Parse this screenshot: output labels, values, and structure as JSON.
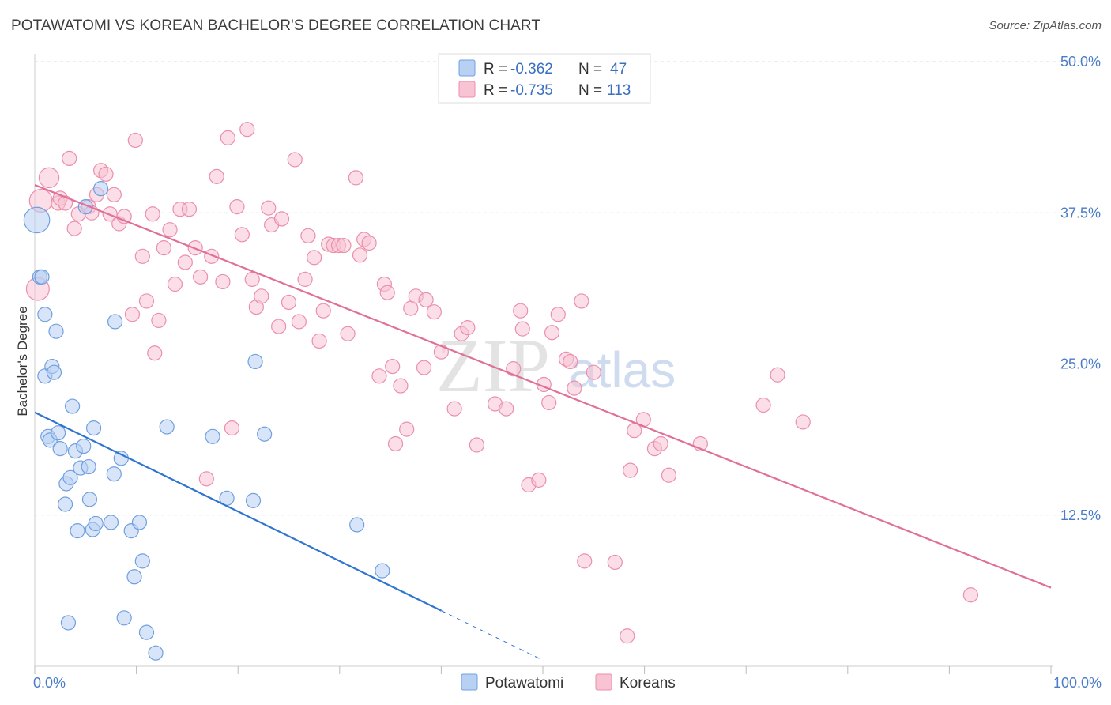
{
  "title": "POTAWATOMI VS KOREAN BACHELOR'S DEGREE CORRELATION CHART",
  "source": "Source: ZipAtlas.com",
  "watermark": {
    "zip": "ZIP",
    "atlas": "atlas"
  },
  "colors": {
    "blue_fill": "#b8d0f2",
    "blue_stroke": "#6f9fe0",
    "blue_line": "#2f74d0",
    "pink_fill": "#f8c3d3",
    "pink_stroke": "#eb8fac",
    "pink_line": "#e0709a",
    "tick": "#4a7cc7",
    "grid": "#dddddd"
  },
  "legend": {
    "rows": [
      {
        "r_label": "R =",
        "r_value": "-0.362",
        "n_label": "N =",
        "n_value": "47"
      },
      {
        "r_label": "R =",
        "r_value": "-0.735",
        "n_label": "N =",
        "n_value": "113"
      }
    ]
  },
  "chart_data": {
    "type": "scatter",
    "title": "POTAWATOMI VS KOREAN BACHELOR'S DEGREE CORRELATION CHART",
    "xlabel": "",
    "ylabel": "Bachelor's Degree",
    "xlim": [
      0,
      100
    ],
    "ylim": [
      0,
      50
    ],
    "x_tick_labels": [
      "0.0%",
      "100.0%"
    ],
    "y_ticks": [
      12.5,
      25.0,
      37.5,
      50.0
    ],
    "y_tick_labels": [
      "12.5%",
      "25.0%",
      "37.5%",
      "50.0%"
    ],
    "legend_position": "top-center",
    "series": [
      {
        "name": "Potawatomi",
        "r": -0.362,
        "n": 47,
        "trend": {
          "x0": 0,
          "y0": 21.0,
          "x1": 40,
          "y1": 4.6,
          "dash_to_x": 50,
          "dash_to_y": 0.5
        },
        "points": [
          [
            0.2,
            36.9,
            1.8
          ],
          [
            0.5,
            32.2,
            1
          ],
          [
            0.7,
            32.2,
            1
          ],
          [
            1.0,
            29.1,
            1
          ],
          [
            1.0,
            24.0,
            1
          ],
          [
            1.3,
            19.0,
            1
          ],
          [
            1.5,
            18.7,
            1
          ],
          [
            1.7,
            24.8,
            1
          ],
          [
            1.9,
            24.3,
            1
          ],
          [
            2.1,
            27.7,
            1
          ],
          [
            2.3,
            19.3,
            1
          ],
          [
            2.5,
            18.0,
            1
          ],
          [
            3.0,
            13.4,
            1
          ],
          [
            3.1,
            15.1,
            1
          ],
          [
            3.3,
            3.6,
            1
          ],
          [
            3.5,
            15.6,
            1
          ],
          [
            3.7,
            21.5,
            1
          ],
          [
            4.0,
            17.8,
            1
          ],
          [
            4.2,
            11.2,
            1
          ],
          [
            4.5,
            16.4,
            1
          ],
          [
            4.8,
            18.2,
            1
          ],
          [
            5.0,
            38.0,
            1
          ],
          [
            5.3,
            16.5,
            1
          ],
          [
            5.4,
            13.8,
            1
          ],
          [
            5.7,
            11.3,
            1
          ],
          [
            5.8,
            19.7,
            1
          ],
          [
            6.0,
            11.8,
            1
          ],
          [
            6.5,
            39.5,
            1
          ],
          [
            7.5,
            11.9,
            1
          ],
          [
            7.8,
            15.9,
            1
          ],
          [
            7.9,
            28.5,
            1
          ],
          [
            8.5,
            17.2,
            1
          ],
          [
            8.8,
            4.0,
            1
          ],
          [
            9.5,
            11.2,
            1
          ],
          [
            9.8,
            7.4,
            1
          ],
          [
            10.3,
            11.9,
            1
          ],
          [
            10.6,
            8.7,
            1
          ],
          [
            11.0,
            2.8,
            1
          ],
          [
            11.9,
            1.1,
            1
          ],
          [
            13.0,
            19.8,
            1
          ],
          [
            17.5,
            19.0,
            1
          ],
          [
            18.9,
            13.9,
            1
          ],
          [
            21.5,
            13.7,
            1
          ],
          [
            21.7,
            25.2,
            1
          ],
          [
            22.6,
            19.2,
            1
          ],
          [
            31.7,
            11.7,
            1
          ],
          [
            34.2,
            7.9,
            1
          ]
        ]
      },
      {
        "name": "Koreans",
        "r": -0.735,
        "n": 113,
        "trend": {
          "x0": 0,
          "y0": 39.8,
          "x1": 100,
          "y1": 6.5
        },
        "points": [
          [
            0.6,
            38.5,
            1.6
          ],
          [
            0.3,
            31.2,
            1.6
          ],
          [
            1.4,
            40.4,
            1.4
          ],
          [
            2.3,
            38.3,
            1
          ],
          [
            2.5,
            38.7,
            1
          ],
          [
            3.0,
            38.3,
            1
          ],
          [
            3.4,
            42.0,
            1
          ],
          [
            3.9,
            36.2,
            1
          ],
          [
            4.3,
            37.4,
            1
          ],
          [
            5.3,
            38.0,
            1
          ],
          [
            5.6,
            37.5,
            1
          ],
          [
            6.1,
            39.0,
            1
          ],
          [
            6.5,
            41.0,
            1
          ],
          [
            7.0,
            40.7,
            1
          ],
          [
            7.4,
            37.4,
            1
          ],
          [
            7.8,
            39.0,
            1
          ],
          [
            8.3,
            36.6,
            1
          ],
          [
            8.8,
            37.2,
            1
          ],
          [
            9.6,
            29.1,
            1
          ],
          [
            9.9,
            43.5,
            1
          ],
          [
            10.6,
            33.9,
            1
          ],
          [
            11.0,
            30.2,
            1
          ],
          [
            11.6,
            37.4,
            1
          ],
          [
            11.8,
            25.9,
            1
          ],
          [
            12.2,
            28.6,
            1
          ],
          [
            12.7,
            34.6,
            1
          ],
          [
            13.3,
            36.1,
            1
          ],
          [
            13.8,
            31.6,
            1
          ],
          [
            14.3,
            37.8,
            1
          ],
          [
            14.8,
            33.4,
            1
          ],
          [
            15.2,
            37.8,
            1
          ],
          [
            15.8,
            34.6,
            1
          ],
          [
            16.3,
            32.2,
            1
          ],
          [
            16.9,
            15.5,
            1
          ],
          [
            17.4,
            33.9,
            1
          ],
          [
            17.9,
            40.5,
            1
          ],
          [
            18.5,
            31.8,
            1
          ],
          [
            19.0,
            43.7,
            1
          ],
          [
            19.4,
            19.7,
            1
          ],
          [
            19.9,
            38.0,
            1
          ],
          [
            20.4,
            35.7,
            1
          ],
          [
            20.9,
            44.4,
            1
          ],
          [
            21.4,
            32.0,
            1
          ],
          [
            21.8,
            29.7,
            1
          ],
          [
            22.3,
            30.6,
            1
          ],
          [
            23.0,
            37.9,
            1
          ],
          [
            23.3,
            36.5,
            1
          ],
          [
            24.0,
            28.1,
            1
          ],
          [
            24.3,
            37.0,
            1
          ],
          [
            25.0,
            30.1,
            1
          ],
          [
            25.6,
            41.9,
            1
          ],
          [
            26.0,
            28.5,
            1
          ],
          [
            26.6,
            32.0,
            1
          ],
          [
            26.9,
            35.6,
            1
          ],
          [
            27.5,
            33.8,
            1
          ],
          [
            28.0,
            26.9,
            1
          ],
          [
            28.4,
            29.4,
            1
          ],
          [
            28.9,
            34.9,
            1
          ],
          [
            29.4,
            34.8,
            1
          ],
          [
            29.9,
            34.8,
            1
          ],
          [
            30.4,
            34.8,
            1
          ],
          [
            30.8,
            27.5,
            1
          ],
          [
            31.6,
            40.4,
            1
          ],
          [
            32.0,
            34.0,
            1
          ],
          [
            32.4,
            35.3,
            1
          ],
          [
            32.9,
            35.0,
            1
          ],
          [
            33.9,
            24.0,
            1
          ],
          [
            34.4,
            31.6,
            1
          ],
          [
            34.7,
            30.9,
            1
          ],
          [
            35.2,
            24.8,
            1
          ],
          [
            35.5,
            18.4,
            1
          ],
          [
            36.0,
            23.2,
            1
          ],
          [
            36.6,
            19.6,
            1
          ],
          [
            37.0,
            29.6,
            1
          ],
          [
            37.5,
            30.6,
            1
          ],
          [
            38.3,
            24.7,
            1
          ],
          [
            38.5,
            30.3,
            1
          ],
          [
            39.3,
            29.3,
            1
          ],
          [
            40.0,
            26.0,
            1
          ],
          [
            41.3,
            21.3,
            1
          ],
          [
            42.0,
            27.5,
            1
          ],
          [
            42.6,
            28.0,
            1
          ],
          [
            43.5,
            18.3,
            1
          ],
          [
            45.3,
            21.7,
            1
          ],
          [
            46.4,
            21.3,
            1
          ],
          [
            47.1,
            24.6,
            1
          ],
          [
            47.8,
            29.4,
            1
          ],
          [
            48.0,
            27.9,
            1
          ],
          [
            48.6,
            15.0,
            1
          ],
          [
            49.6,
            15.4,
            1
          ],
          [
            50.1,
            23.3,
            1
          ],
          [
            50.6,
            21.8,
            1
          ],
          [
            50.9,
            27.6,
            1
          ],
          [
            51.5,
            29.1,
            1
          ],
          [
            52.3,
            25.4,
            1
          ],
          [
            52.7,
            25.2,
            1
          ],
          [
            53.1,
            23.0,
            1
          ],
          [
            53.8,
            30.2,
            1
          ],
          [
            54.1,
            8.7,
            1
          ],
          [
            55.0,
            24.3,
            1
          ],
          [
            57.1,
            8.6,
            1
          ],
          [
            58.3,
            2.5,
            1
          ],
          [
            58.6,
            16.2,
            1
          ],
          [
            59.0,
            19.5,
            1
          ],
          [
            59.9,
            20.4,
            1
          ],
          [
            61.0,
            18.0,
            1
          ],
          [
            61.6,
            18.4,
            1
          ],
          [
            62.4,
            15.8,
            1
          ],
          [
            65.5,
            18.4,
            1
          ],
          [
            71.7,
            21.6,
            1
          ],
          [
            73.1,
            24.1,
            1
          ],
          [
            75.6,
            20.2,
            1
          ],
          [
            92.1,
            5.9,
            1
          ]
        ]
      }
    ]
  },
  "bottom_legend": [
    "Potawatomi",
    "Koreans"
  ]
}
